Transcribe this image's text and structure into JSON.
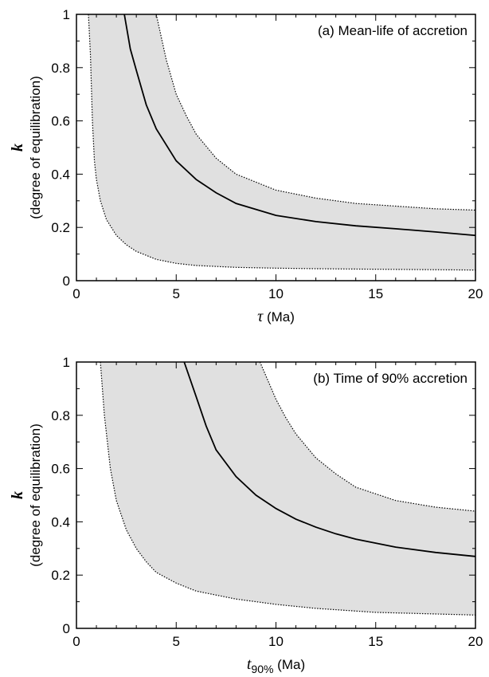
{
  "chart_data": [
    {
      "type": "area",
      "panel_label": "(a) Mean-life of accretion",
      "xlabel_symbol": "τ",
      "xlabel_sub": "",
      "xlabel_unit": "(Ma)",
      "ylabel_symbol": "k",
      "ylabel_text": "(degree of equilibration)",
      "xlim": [
        0,
        20
      ],
      "ylim": [
        0,
        1
      ],
      "xticks": [
        0,
        5,
        10,
        15,
        20
      ],
      "yticks": [
        0,
        0.2,
        0.4,
        0.6,
        0.8,
        1
      ],
      "ytick_labels": [
        "0",
        "0.2",
        "0.4",
        "0.6",
        "0.8",
        "1"
      ],
      "grid": false,
      "fill_color": "#e0e0e0",
      "series": [
        {
          "style": "solid",
          "x": [
            2.4,
            2.7,
            3.0,
            3.5,
            4.0,
            5.0,
            6.0,
            7.0,
            8.0,
            10.0,
            12.0,
            14.0,
            16.0,
            18.0,
            20.0
          ],
          "y": [
            1.0,
            0.87,
            0.79,
            0.66,
            0.57,
            0.45,
            0.38,
            0.33,
            0.29,
            0.245,
            0.222,
            0.206,
            0.195,
            0.183,
            0.17
          ]
        },
        {
          "style": "dotted",
          "x": [
            4.0,
            4.5,
            5.0,
            5.5,
            6.0,
            7.0,
            8.0,
            10.0,
            12.0,
            14.0,
            16.0,
            18.0,
            20.0
          ],
          "y": [
            1.0,
            0.83,
            0.7,
            0.62,
            0.55,
            0.46,
            0.4,
            0.34,
            0.31,
            0.29,
            0.28,
            0.27,
            0.265
          ]
        },
        {
          "style": "dotted",
          "x": [
            0.6,
            0.7,
            0.8,
            0.9,
            1.0,
            1.2,
            1.5,
            2.0,
            2.5,
            3.0,
            4.0,
            5.0,
            6.0,
            8.0,
            10.0,
            12.0,
            15.0,
            20.0
          ],
          "y": [
            1.0,
            0.85,
            0.6,
            0.45,
            0.38,
            0.3,
            0.23,
            0.17,
            0.135,
            0.11,
            0.08,
            0.065,
            0.057,
            0.05,
            0.047,
            0.045,
            0.043,
            0.04
          ]
        }
      ]
    },
    {
      "type": "area",
      "panel_label": "(b) Time of 90% accretion",
      "xlabel_symbol": "t",
      "xlabel_sub": "90%",
      "xlabel_unit": "(Ma)",
      "ylabel_symbol": "k",
      "ylabel_text": "(degree of equilibration)",
      "xlim": [
        0,
        20
      ],
      "ylim": [
        0,
        1
      ],
      "xticks": [
        0,
        5,
        10,
        15,
        20
      ],
      "yticks": [
        0,
        0.2,
        0.4,
        0.6,
        0.8,
        1
      ],
      "ytick_labels": [
        "0",
        "0.2",
        "0.4",
        "0.6",
        "0.8",
        "1"
      ],
      "grid": false,
      "fill_color": "#e0e0e0",
      "series": [
        {
          "style": "solid",
          "x": [
            5.4,
            6.0,
            6.5,
            7.0,
            8.0,
            9.0,
            10.0,
            11.0,
            12.0,
            13.0,
            14.0,
            16.0,
            18.0,
            20.0
          ],
          "y": [
            1.0,
            0.87,
            0.76,
            0.67,
            0.57,
            0.5,
            0.45,
            0.41,
            0.38,
            0.355,
            0.335,
            0.305,
            0.285,
            0.27
          ]
        },
        {
          "style": "dotted",
          "x": [
            9.2,
            9.6,
            10.0,
            10.5,
            11.0,
            12.0,
            13.0,
            14.0,
            16.0,
            18.0,
            20.0
          ],
          "y": [
            1.0,
            0.93,
            0.86,
            0.79,
            0.73,
            0.64,
            0.58,
            0.53,
            0.48,
            0.455,
            0.44
          ]
        },
        {
          "style": "dotted",
          "x": [
            1.2,
            1.4,
            1.7,
            2.0,
            2.5,
            3.0,
            3.5,
            4.0,
            5.0,
            6.0,
            7.0,
            8.0,
            10.0,
            12.0,
            15.0,
            20.0
          ],
          "y": [
            1.0,
            0.8,
            0.6,
            0.48,
            0.37,
            0.3,
            0.25,
            0.21,
            0.17,
            0.14,
            0.125,
            0.11,
            0.09,
            0.075,
            0.06,
            0.05
          ]
        }
      ]
    }
  ]
}
